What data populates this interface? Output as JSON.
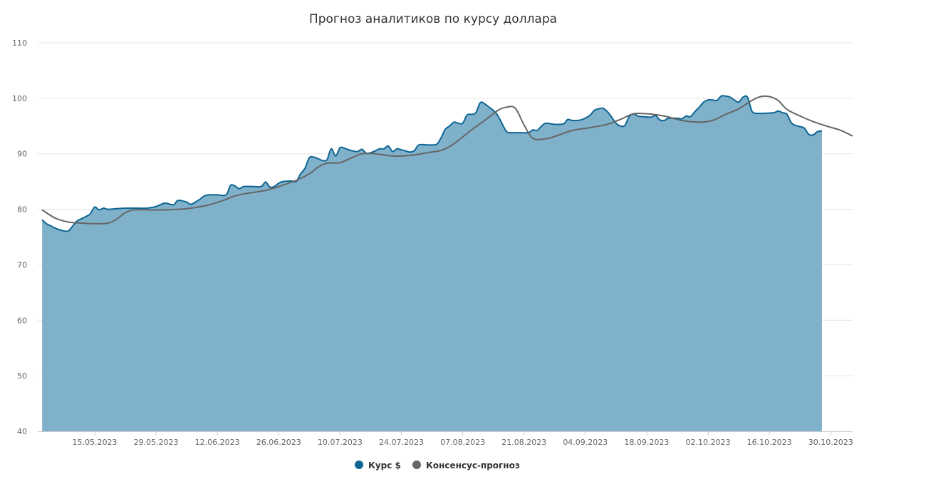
{
  "chart_data": {
    "type": "area",
    "title": "Прогноз аналитиков по курсу доллара",
    "xlabel": "",
    "ylabel": "",
    "ylim": [
      40,
      110
    ],
    "yticks": [
      40,
      50,
      60,
      70,
      80,
      90,
      100,
      110
    ],
    "xlim": [
      "2023-05-02",
      "2023-11-04"
    ],
    "xticks": [
      "15.05.2023",
      "29.05.2023",
      "12.06.2023",
      "26.06.2023",
      "10.07.2023",
      "24.07.2023",
      "07.08.2023",
      "21.08.2023",
      "04.09.2023",
      "18.09.2023",
      "02.10.2023",
      "16.10.2023",
      "30.10.2023"
    ],
    "grid": true,
    "legend_position": "bottom",
    "series": [
      {
        "name": "Курс $",
        "type": "area",
        "color": "#0d6594",
        "fill": "#7fb1cb",
        "points": [
          [
            "2023-05-03",
            78.1
          ],
          [
            "2023-05-04",
            77.4
          ],
          [
            "2023-05-05",
            77.0
          ],
          [
            "2023-05-06",
            76.6
          ],
          [
            "2023-05-07",
            76.3
          ],
          [
            "2023-05-08",
            76.1
          ],
          [
            "2023-05-09",
            76.1
          ],
          [
            "2023-05-10",
            77.0
          ],
          [
            "2023-05-11",
            77.9
          ],
          [
            "2023-05-12",
            78.3
          ],
          [
            "2023-05-13",
            78.7
          ],
          [
            "2023-05-14",
            79.2
          ],
          [
            "2023-05-15",
            80.4
          ],
          [
            "2023-05-16",
            79.9
          ],
          [
            "2023-05-17",
            80.2
          ],
          [
            "2023-05-18",
            80.0
          ],
          [
            "2023-05-20",
            80.1
          ],
          [
            "2023-05-22",
            80.2
          ],
          [
            "2023-05-25",
            80.2
          ],
          [
            "2023-05-27",
            80.2
          ],
          [
            "2023-05-29",
            80.5
          ],
          [
            "2023-05-31",
            81.1
          ],
          [
            "2023-06-02",
            80.8
          ],
          [
            "2023-06-03",
            81.6
          ],
          [
            "2023-06-05",
            81.3
          ],
          [
            "2023-06-06",
            80.9
          ],
          [
            "2023-06-08",
            81.8
          ],
          [
            "2023-06-09",
            82.4
          ],
          [
            "2023-06-10",
            82.6
          ],
          [
            "2023-06-12",
            82.6
          ],
          [
            "2023-06-14",
            82.6
          ],
          [
            "2023-06-15",
            84.3
          ],
          [
            "2023-06-16",
            84.2
          ],
          [
            "2023-06-17",
            83.7
          ],
          [
            "2023-06-18",
            84.1
          ],
          [
            "2023-06-20",
            84.1
          ],
          [
            "2023-06-22",
            84.1
          ],
          [
            "2023-06-23",
            84.9
          ],
          [
            "2023-06-24",
            84.0
          ],
          [
            "2023-06-25",
            84.1
          ],
          [
            "2023-06-26",
            84.7
          ],
          [
            "2023-06-27",
            85.0
          ],
          [
            "2023-06-29",
            85.1
          ],
          [
            "2023-06-30",
            85.0
          ],
          [
            "2023-07-01",
            86.4
          ],
          [
            "2023-07-02",
            87.4
          ],
          [
            "2023-07-03",
            89.3
          ],
          [
            "2023-07-04",
            89.4
          ],
          [
            "2023-07-05",
            89.1
          ],
          [
            "2023-07-06",
            88.8
          ],
          [
            "2023-07-07",
            88.9
          ],
          [
            "2023-07-08",
            90.9
          ],
          [
            "2023-07-09",
            89.6
          ],
          [
            "2023-07-10",
            91.1
          ],
          [
            "2023-07-11",
            91.0
          ],
          [
            "2023-07-12",
            90.7
          ],
          [
            "2023-07-13",
            90.5
          ],
          [
            "2023-07-14",
            90.4
          ],
          [
            "2023-07-15",
            90.8
          ],
          [
            "2023-07-16",
            90.1
          ],
          [
            "2023-07-17",
            90.2
          ],
          [
            "2023-07-18",
            90.5
          ],
          [
            "2023-07-19",
            90.9
          ],
          [
            "2023-07-20",
            90.9
          ],
          [
            "2023-07-21",
            91.4
          ],
          [
            "2023-07-22",
            90.4
          ],
          [
            "2023-07-23",
            90.9
          ],
          [
            "2023-07-24",
            90.7
          ],
          [
            "2023-07-25",
            90.5
          ],
          [
            "2023-07-26",
            90.3
          ],
          [
            "2023-07-27",
            90.6
          ],
          [
            "2023-07-28",
            91.6
          ],
          [
            "2023-07-30",
            91.6
          ],
          [
            "2023-08-01",
            91.7
          ],
          [
            "2023-08-02",
            92.8
          ],
          [
            "2023-08-03",
            94.4
          ],
          [
            "2023-08-04",
            95.0
          ],
          [
            "2023-08-05",
            95.7
          ],
          [
            "2023-08-06",
            95.5
          ],
          [
            "2023-08-07",
            95.5
          ],
          [
            "2023-08-08",
            97.0
          ],
          [
            "2023-08-09",
            97.1
          ],
          [
            "2023-08-10",
            97.4
          ],
          [
            "2023-08-11",
            99.2
          ],
          [
            "2023-08-12",
            99.0
          ],
          [
            "2023-08-13",
            98.4
          ],
          [
            "2023-08-14",
            97.8
          ],
          [
            "2023-08-15",
            96.9
          ],
          [
            "2023-08-16",
            95.4
          ],
          [
            "2023-08-17",
            94.0
          ],
          [
            "2023-08-18",
            93.8
          ],
          [
            "2023-08-20",
            93.8
          ],
          [
            "2023-08-22",
            93.8
          ],
          [
            "2023-08-23",
            94.3
          ],
          [
            "2023-08-24",
            94.2
          ],
          [
            "2023-08-25",
            95.0
          ],
          [
            "2023-08-26",
            95.5
          ],
          [
            "2023-08-28",
            95.3
          ],
          [
            "2023-08-30",
            95.4
          ],
          [
            "2023-08-31",
            96.2
          ],
          [
            "2023-09-01",
            96.0
          ],
          [
            "2023-09-03",
            96.1
          ],
          [
            "2023-09-05",
            96.9
          ],
          [
            "2023-09-06",
            97.8
          ],
          [
            "2023-09-07",
            98.1
          ],
          [
            "2023-09-08",
            98.2
          ],
          [
            "2023-09-09",
            97.6
          ],
          [
            "2023-09-10",
            96.6
          ],
          [
            "2023-09-11",
            95.5
          ],
          [
            "2023-09-12",
            95.0
          ],
          [
            "2023-09-13",
            95.1
          ],
          [
            "2023-09-14",
            96.7
          ],
          [
            "2023-09-15",
            97.2
          ],
          [
            "2023-09-16",
            96.8
          ],
          [
            "2023-09-17",
            96.7
          ],
          [
            "2023-09-19",
            96.6
          ],
          [
            "2023-09-20",
            96.9
          ],
          [
            "2023-09-21",
            96.1
          ],
          [
            "2023-09-22",
            96.0
          ],
          [
            "2023-09-23",
            96.4
          ],
          [
            "2023-09-25",
            96.4
          ],
          [
            "2023-09-26",
            96.3
          ],
          [
            "2023-09-27",
            96.8
          ],
          [
            "2023-09-28",
            96.7
          ],
          [
            "2023-09-29",
            97.6
          ],
          [
            "2023-09-30",
            98.4
          ],
          [
            "2023-10-01",
            99.3
          ],
          [
            "2023-10-02",
            99.7
          ],
          [
            "2023-10-03",
            99.7
          ],
          [
            "2023-10-04",
            99.6
          ],
          [
            "2023-10-05",
            100.4
          ],
          [
            "2023-10-06",
            100.4
          ],
          [
            "2023-10-07",
            100.2
          ],
          [
            "2023-10-08",
            99.7
          ],
          [
            "2023-10-09",
            99.3
          ],
          [
            "2023-10-10",
            100.2
          ],
          [
            "2023-10-11",
            100.2
          ],
          [
            "2023-10-12",
            97.7
          ],
          [
            "2023-10-13",
            97.3
          ],
          [
            "2023-10-15",
            97.3
          ],
          [
            "2023-10-17",
            97.4
          ],
          [
            "2023-10-18",
            97.7
          ],
          [
            "2023-10-19",
            97.4
          ],
          [
            "2023-10-20",
            97.1
          ],
          [
            "2023-10-21",
            95.6
          ],
          [
            "2023-10-22",
            95.1
          ],
          [
            "2023-10-23",
            94.9
          ],
          [
            "2023-10-24",
            94.6
          ],
          [
            "2023-10-25",
            93.5
          ],
          [
            "2023-10-26",
            93.4
          ],
          [
            "2023-10-27",
            94.0
          ],
          [
            "2023-10-28",
            94.1
          ]
        ]
      },
      {
        "name": "Консенсус-прогноз",
        "type": "line",
        "color": "#666666",
        "points": [
          [
            "2023-05-03",
            79.9
          ],
          [
            "2023-05-06",
            78.4
          ],
          [
            "2023-05-09",
            77.7
          ],
          [
            "2023-05-12",
            77.5
          ],
          [
            "2023-05-15",
            77.4
          ],
          [
            "2023-05-18",
            77.5
          ],
          [
            "2023-05-20",
            78.2
          ],
          [
            "2023-05-22",
            79.4
          ],
          [
            "2023-05-24",
            79.9
          ],
          [
            "2023-05-27",
            79.9
          ],
          [
            "2023-05-31",
            79.9
          ],
          [
            "2023-06-05",
            80.1
          ],
          [
            "2023-06-09",
            80.6
          ],
          [
            "2023-06-13",
            81.5
          ],
          [
            "2023-06-16",
            82.4
          ],
          [
            "2023-06-19",
            82.9
          ],
          [
            "2023-06-23",
            83.4
          ],
          [
            "2023-06-26",
            84.1
          ],
          [
            "2023-06-30",
            85.2
          ],
          [
            "2023-07-03",
            86.4
          ],
          [
            "2023-07-05",
            87.6
          ],
          [
            "2023-07-07",
            88.3
          ],
          [
            "2023-07-10",
            88.4
          ],
          [
            "2023-07-13",
            89.4
          ],
          [
            "2023-07-15",
            90.0
          ],
          [
            "2023-07-18",
            90.0
          ],
          [
            "2023-07-22",
            89.6
          ],
          [
            "2023-07-26",
            89.7
          ],
          [
            "2023-07-30",
            90.2
          ],
          [
            "2023-08-02",
            90.6
          ],
          [
            "2023-08-04",
            91.3
          ],
          [
            "2023-08-06",
            92.4
          ],
          [
            "2023-08-09",
            94.3
          ],
          [
            "2023-08-12",
            96.0
          ],
          [
            "2023-08-15",
            97.8
          ],
          [
            "2023-08-17",
            98.4
          ],
          [
            "2023-08-19",
            98.2
          ],
          [
            "2023-08-21",
            95.2
          ],
          [
            "2023-08-23",
            92.8
          ],
          [
            "2023-08-26",
            92.7
          ],
          [
            "2023-08-29",
            93.4
          ],
          [
            "2023-09-01",
            94.2
          ],
          [
            "2023-09-05",
            94.7
          ],
          [
            "2023-09-09",
            95.3
          ],
          [
            "2023-09-12",
            96.2
          ],
          [
            "2023-09-15",
            97.2
          ],
          [
            "2023-09-18",
            97.2
          ],
          [
            "2023-09-22",
            96.8
          ],
          [
            "2023-09-26",
            96.0
          ],
          [
            "2023-09-30",
            95.7
          ],
          [
            "2023-10-03",
            96.0
          ],
          [
            "2023-10-06",
            97.1
          ],
          [
            "2023-10-09",
            98.1
          ],
          [
            "2023-10-12",
            99.6
          ],
          [
            "2023-10-14",
            100.3
          ],
          [
            "2023-10-16",
            100.3
          ],
          [
            "2023-10-18",
            99.6
          ],
          [
            "2023-10-20",
            98.0
          ],
          [
            "2023-10-23",
            96.8
          ],
          [
            "2023-10-26",
            95.8
          ],
          [
            "2023-10-29",
            95.0
          ],
          [
            "2023-11-01",
            94.3
          ],
          [
            "2023-11-04",
            93.2
          ]
        ]
      }
    ]
  }
}
